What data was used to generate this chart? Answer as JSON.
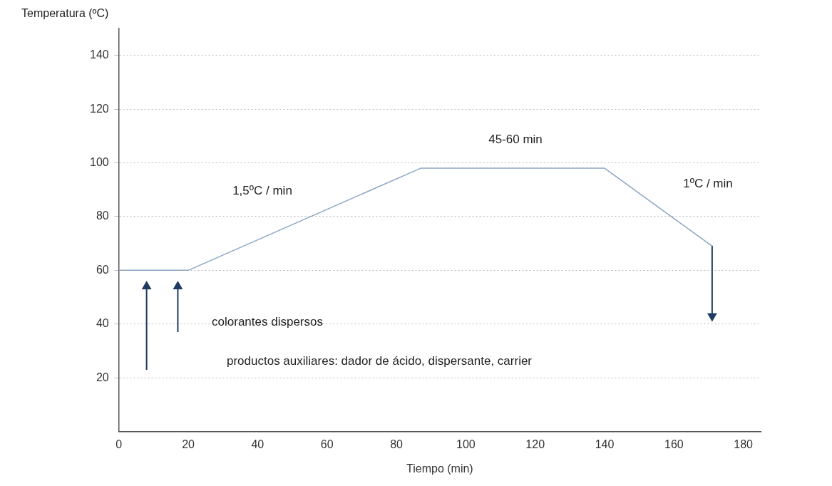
{
  "chart_data": {
    "type": "line",
    "xlabel": "Tiempo (min)",
    "ylabel": "Temperatura (ºC)",
    "xlim": [
      0,
      185
    ],
    "xticks": [
      0,
      20,
      40,
      60,
      80,
      100,
      120,
      140,
      160,
      180
    ],
    "ylim": [
      0,
      150
    ],
    "yticks": [
      20,
      40,
      60,
      80,
      100,
      120,
      140
    ],
    "grid": "y",
    "legend": false,
    "marker": "none",
    "line_style": "solid",
    "series": [
      {
        "color": "#8aa5c5",
        "x": [
          0,
          20,
          87,
          140,
          171
        ],
        "values": [
          60,
          60,
          98,
          98,
          69
        ]
      },
      {
        "color": "#1f3b63",
        "x": [
          171,
          171
        ],
        "values": [
          69,
          43
        ],
        "marker": "triangle"
      },
      {
        "color": "#1f3b63",
        "x": [
          8,
          8
        ],
        "values": [
          23,
          54
        ],
        "marker": "triangle"
      },
      {
        "color": "#1f3b63",
        "x": [
          17,
          17
        ],
        "values": [
          37,
          54
        ],
        "marker": "triangle"
      }
    ],
    "annotations": [
      "1,5ºC / min",
      "45-60 min",
      "1ºC / min",
      "colorantes dispersos",
      "productos auxiliares: dador de ácido, dispersante, carrier"
    ]
  }
}
